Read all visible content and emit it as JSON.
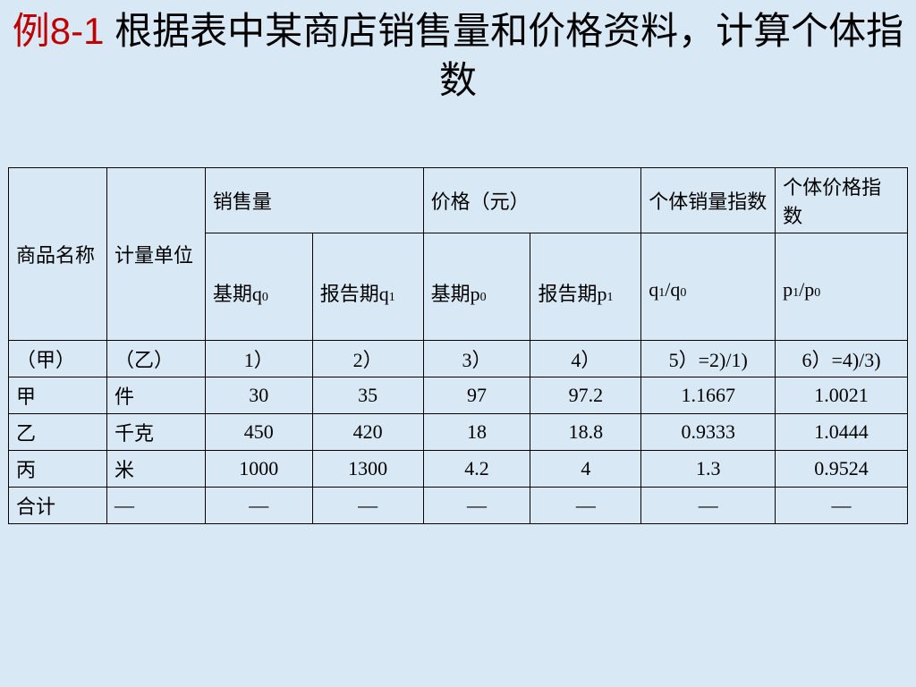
{
  "title_prefix": "例8-1",
  "title_main": " 根据表中某商店销售量和价格资料，计算个体指数",
  "headers": {
    "product_name": "商品名称",
    "unit": "计量单位",
    "sales_volume": "销售量",
    "price": "价格（元）",
    "volume_index": "个体销量指数",
    "price_index": "个体价格指数",
    "base_q": "基期q",
    "report_q": "报告期q",
    "base_p": "基期p",
    "report_p": "报告期p",
    "q_ratio": "q",
    "q_ratio_sub1": "1",
    "q_ratio_mid": "/q",
    "q_ratio_sub2": "0",
    "p_ratio": "p",
    "p_ratio_sub1": "1",
    "p_ratio_mid": "/p",
    "p_ratio_sub2": "0"
  },
  "index_row": {
    "c1": "（甲）",
    "c2": "（乙）",
    "c3": "1）",
    "c4": "2）",
    "c5": "3）",
    "c6": "4）",
    "c7": "5）=2)/1)",
    "c8": "6）=4)/3)"
  },
  "rows": [
    {
      "name": "甲",
      "unit": "件",
      "q0": "30",
      "q1": "35",
      "p0": "97",
      "p1": "97.2",
      "iq": "1.1667",
      "ip": "1.0021"
    },
    {
      "name": "乙",
      "unit": "千克",
      "q0": "450",
      "q1": "420",
      "p0": "18",
      "p1": "18.8",
      "iq": "0.9333",
      "ip": "1.0444"
    },
    {
      "name": "丙",
      "unit": "米",
      "q0": "1000",
      "q1": "1300",
      "p0": "4.2",
      "p1": "4",
      "iq": "1.3",
      "ip": "0.9524"
    },
    {
      "name": "合计",
      "unit": "—",
      "q0": "—",
      "q1": "—",
      "p0": "—",
      "p1": "—",
      "iq": "—",
      "ip": "—"
    }
  ],
  "colors": {
    "background": "#d9e8f5",
    "text": "#000000",
    "title_prefix": "#c00000",
    "border": "#000000"
  },
  "table": {
    "type": "table",
    "border_width": 1,
    "font_size": 22,
    "title_font_size": 42
  }
}
